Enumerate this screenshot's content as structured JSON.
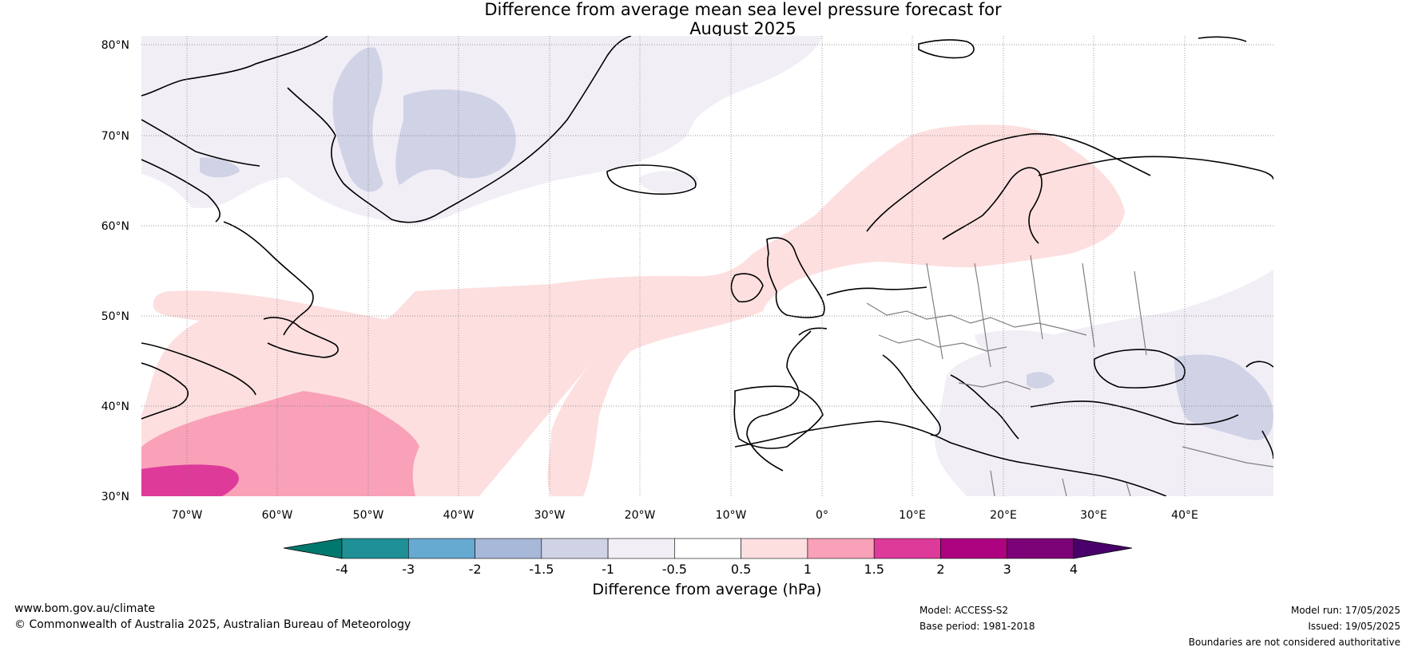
{
  "title": {
    "line1": "Difference from average mean sea level pressure forecast for",
    "line2": "August 2025"
  },
  "map": {
    "lat_labels": [
      "80°N",
      "70°N",
      "60°N",
      "50°N",
      "40°N",
      "30°N"
    ],
    "lon_labels": [
      "70°W",
      "60°W",
      "50°W",
      "40°W",
      "30°W",
      "20°W",
      "10°W",
      "0°",
      "10°E",
      "20°E",
      "30°E",
      "40°E"
    ]
  },
  "colorbar": {
    "title": "Difference from average (hPa)",
    "ticks": [
      "-4",
      "-3",
      "-2",
      "-1.5",
      "-1",
      "-0.5",
      "0.5",
      "1",
      "1.5",
      "2",
      "3",
      "4"
    ],
    "colors": {
      "under": "#00786e",
      "bins": [
        "#1f9096",
        "#66a9d1",
        "#a8b8d8",
        "#d0d2e6",
        "#f2eef6",
        "#ffffff",
        "#fddfe0",
        "#f9a1b8",
        "#de3a9a",
        "#ad0380",
        "#7b0177"
      ],
      "over": "#4a006a"
    }
  },
  "footer": {
    "site": "www.bom.gov.au/climate",
    "copyright": "© Commonwealth of Australia 2025, Australian Bureau of Meteorology",
    "model": "Model: ACCESS-S2",
    "base_period": "Base period: 1981-2018",
    "model_run": "Model run: 17/05/2025",
    "issued": "Issued: 19/05/2025",
    "disclaimer": "Boundaries are not considered authoritative"
  }
}
